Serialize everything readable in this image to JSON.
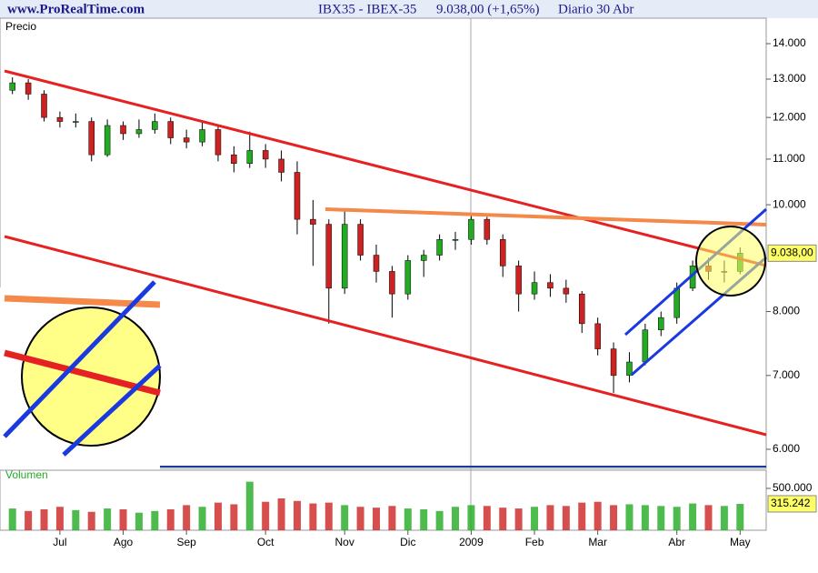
{
  "header": {
    "site": "www.ProRealTime.com",
    "instrument": "IBX35 - IBEX-35",
    "quote": "9.038,00 (+1,65%)",
    "period": "Diario  30 Abr"
  },
  "chart_data": [
    {
      "type": "candlestick",
      "label": "Precio",
      "log_scale": true,
      "categories": [
        null,
        null,
        null,
        "Jul",
        null,
        null,
        null,
        "Ago",
        null,
        null,
        null,
        "Sep",
        null,
        null,
        null,
        null,
        "Oct",
        null,
        null,
        null,
        null,
        "Nov",
        null,
        null,
        null,
        "Dic",
        null,
        null,
        null,
        "2009",
        null,
        null,
        null,
        "Feb",
        null,
        null,
        null,
        "Mar",
        null,
        null,
        null,
        null,
        "Abr",
        null,
        null,
        null,
        "May"
      ],
      "open": [
        12700,
        12900,
        12600,
        12000,
        11900,
        11900,
        11100,
        11800,
        11600,
        11700,
        11900,
        11500,
        11400,
        11700,
        11100,
        10900,
        11200,
        11000,
        10700,
        9700,
        9600,
        8400,
        9600,
        9000,
        8700,
        8300,
        8900,
        9000,
        9300,
        9300,
        9700,
        9300,
        8800,
        8300,
        8500,
        8400,
        8300,
        7800,
        7400,
        7000,
        7200,
        7700,
        7900,
        8400,
        8800,
        8700,
        8700
      ],
      "high": [
        13050,
        13000,
        12700,
        12150,
        12100,
        12000,
        11950,
        11900,
        11950,
        12100,
        12000,
        11700,
        11900,
        11800,
        11300,
        11650,
        11350,
        11200,
        10950,
        10100,
        9700,
        9900,
        9700,
        9200,
        8800,
        9000,
        9100,
        9400,
        9450,
        9800,
        9750,
        9400,
        8900,
        8700,
        8650,
        8550,
        8350,
        7900,
        7500,
        7350,
        7800,
        8000,
        8500,
        8900,
        8950,
        8900,
        9150
      ],
      "low": [
        12600,
        12450,
        11900,
        11750,
        11750,
        10950,
        11050,
        11450,
        11500,
        11600,
        11350,
        11250,
        11300,
        10950,
        10700,
        10800,
        10800,
        10500,
        9400,
        8800,
        7800,
        8300,
        8900,
        8500,
        7900,
        8200,
        8600,
        8900,
        9100,
        9200,
        9200,
        8600,
        8000,
        8200,
        8250,
        8150,
        7650,
        7300,
        6750,
        6900,
        7150,
        7600,
        7800,
        8350,
        8550,
        8500,
        8650
      ],
      "close": [
        12900,
        12600,
        12000,
        11900,
        11900,
        11100,
        11800,
        11600,
        11700,
        11900,
        11500,
        11400,
        11700,
        11100,
        10900,
        11200,
        11000,
        10700,
        9700,
        9600,
        8400,
        9600,
        9000,
        8700,
        8300,
        8900,
        9000,
        9300,
        9300,
        9700,
        9300,
        8800,
        8300,
        8500,
        8400,
        8300,
        7800,
        7400,
        7000,
        7200,
        7700,
        7900,
        8400,
        8800,
        8700,
        8700,
        9038
      ],
      "up_color": "#22aa22",
      "down_color": "#cc2222",
      "ylim": [
        5765,
        14765
      ],
      "yticks": [
        {
          "value": 6000,
          "label": "6.000"
        },
        {
          "value": 7000,
          "label": "7.000"
        },
        {
          "value": 8000,
          "label": "8.000"
        },
        {
          "value": 10000,
          "label": "10.000"
        },
        {
          "value": 11000,
          "label": "11.000"
        },
        {
          "value": 12000,
          "label": "12.000"
        },
        {
          "value": 13000,
          "label": "13.000"
        },
        {
          "value": 14000,
          "label": "14.000"
        }
      ],
      "last_value_label": {
        "value": 9038,
        "label": "9.038,00"
      }
    },
    {
      "type": "volume",
      "label": "Volumen",
      "values": [
        260000,
        230000,
        250000,
        280000,
        240000,
        220000,
        260000,
        250000,
        210000,
        230000,
        250000,
        300000,
        280000,
        330000,
        310000,
        580000,
        340000,
        380000,
        350000,
        320000,
        330000,
        300000,
        280000,
        270000,
        290000,
        260000,
        250000,
        230000,
        280000,
        300000,
        290000,
        270000,
        260000,
        280000,
        300000,
        290000,
        330000,
        340000,
        300000,
        310000,
        300000,
        290000,
        280000,
        320000,
        300000,
        290000,
        315242
      ],
      "ylim": [
        0,
        717000
      ],
      "yticks": [
        {
          "value": 500000,
          "label": "500.000"
        }
      ],
      "last_value_label": {
        "value": 315242,
        "label": "315.242"
      }
    }
  ]
}
